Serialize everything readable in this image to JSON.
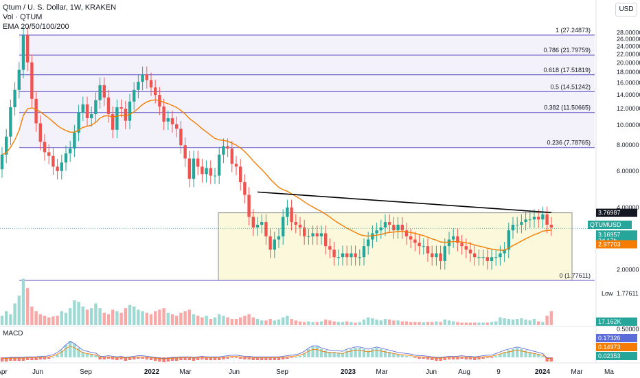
{
  "legend": {
    "symbol": "Qtum / U. S. Dollar, 1W, KRAKEN",
    "volume": "Vol · QTUM",
    "ema": "EMA 20/50/100/200"
  },
  "currency_button": "USD",
  "macd_label": "MACD",
  "colors": {
    "up": "#26a69a",
    "down": "#ef5350",
    "ema": "#f57c00",
    "fib": "#5b4ec4",
    "fib_fill": "#f3f2fb",
    "range_fill": "#fbf8dc",
    "range_border": "#8a8a8a",
    "trendline": "#000000",
    "last_price": "#26a69a",
    "macd_line": "#5b6bd8",
    "signal_line": "#f57c00"
  },
  "chart_data": {
    "type": "candlestick",
    "symbol": "QTUMUSD",
    "price_axis": {
      "ticks": [
        "28.00000",
        "26.00000",
        "24.00000",
        "22.00000",
        "20.00000",
        "18.00000",
        "16.00000",
        "14.00000",
        "12.00000",
        "10.00000",
        "8.00000",
        "6.00000",
        "4.00000",
        "2.00000"
      ],
      "range": [
        1.0,
        28.5
      ],
      "scale": "log"
    },
    "time_axis": {
      "ticks": [
        "Apr",
        "Jun",
        "Sep",
        "2022",
        "Mar",
        "Jun",
        "Sep",
        "2023",
        "Mar",
        "Jun",
        "Aug",
        "9",
        "2024",
        "Mar",
        "Ma"
      ]
    },
    "fib_levels": [
      {
        "ratio": "1",
        "value": 27.24873,
        "label": "1 (27.24873)"
      },
      {
        "ratio": "0.786",
        "value": 21.79759,
        "label": "0.786 (21.79759)"
      },
      {
        "ratio": "0.618",
        "value": 17.51819,
        "label": "0.618 (17.51819)"
      },
      {
        "ratio": "0.5",
        "value": 14.51242,
        "label": "0.5 (14.51242)"
      },
      {
        "ratio": "0.382",
        "value": 11.50665,
        "label": "0.382 (11.50665)"
      },
      {
        "ratio": "0.236",
        "value": 7.78765,
        "label": "0.236 (7.78765)"
      },
      {
        "ratio": "0",
        "value": 1.77611,
        "label": "0 (1.77611)"
      }
    ],
    "price_badges": [
      {
        "value": "3.76987",
        "style": "range-top"
      },
      {
        "value": "QTUMUSD",
        "style": "symbol"
      },
      {
        "value": "3.16957",
        "style": "last"
      },
      {
        "value": "3d 17h",
        "style": "countdown"
      },
      {
        "value": "2.97703",
        "style": "ema"
      }
    ],
    "low_label": {
      "text": "Low",
      "value": "1.77611"
    },
    "volume_badge": "17.162K",
    "macd_axis": {
      "ticks": [
        "0.50000"
      ]
    },
    "macd_badges": [
      {
        "value": "0.17326",
        "style": "macd"
      },
      {
        "value": "0.14973",
        "style": "signal"
      },
      {
        "value": "0.02353",
        "style": "hist"
      }
    ],
    "range_box": {
      "top": 3.76987,
      "bottom": 1.77611
    },
    "trendline": {
      "start": 4.75,
      "end": 3.78
    },
    "weekly_closes": [
      7.2,
      8.8,
      12.2,
      14.8,
      18.5,
      27.2,
      20.1,
      13.4,
      10.2,
      8.3,
      7.4,
      7.1,
      6.3,
      6.0,
      6.6,
      7.3,
      7.7,
      9.2,
      11.5,
      12.6,
      10.8,
      11.3,
      13.2,
      15.6,
      13.6,
      11.3,
      9.5,
      12.2,
      12.0,
      10.5,
      13.0,
      14.8,
      16.2,
      17.6,
      16.5,
      15.2,
      14.0,
      12.3,
      10.4,
      10.8,
      10.1,
      9.6,
      8.0,
      6.9,
      5.5,
      6.9,
      6.3,
      5.8,
      6.2,
      5.7,
      5.7,
      7.2,
      7.9,
      7.7,
      6.5,
      6.3,
      5.3,
      4.6,
      3.6,
      3.2,
      3.3,
      3.4,
      2.9,
      2.5,
      2.8,
      2.9,
      3.6,
      4.0,
      3.4,
      3.3,
      3.2,
      2.9,
      2.9,
      3.0,
      2.9,
      3.0,
      2.6,
      2.5,
      2.3,
      2.3,
      2.4,
      2.3,
      2.4,
      2.3,
      2.3,
      2.6,
      2.8,
      3.0,
      3.1,
      3.2,
      3.4,
      3.3,
      3.1,
      3.3,
      3.1,
      2.9,
      2.8,
      2.7,
      2.6,
      2.6,
      2.4,
      2.3,
      2.4,
      2.2,
      2.6,
      2.8,
      2.9,
      2.7,
      2.6,
      2.5,
      2.4,
      2.3,
      2.3,
      2.3,
      2.2,
      2.3,
      2.3,
      2.4,
      2.5,
      3.1,
      3.3,
      3.3,
      3.4,
      3.5,
      3.5,
      3.6,
      3.5,
      3.7,
      3.3,
      3.2
    ]
  }
}
